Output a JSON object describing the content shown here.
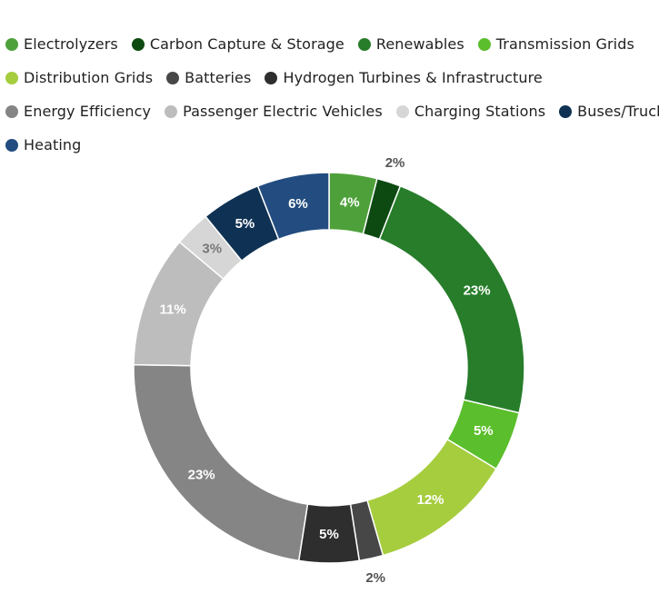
{
  "chart_data": {
    "type": "pie",
    "variant": "donut",
    "legend_position": "top",
    "series": [
      {
        "name": "Electrolyzers",
        "value": 4,
        "label": "4%",
        "color": "#4ea13a",
        "label_color": "#ffffff",
        "label_placement": "inside"
      },
      {
        "name": "Carbon Capture & Storage",
        "value": 2,
        "label": "2%",
        "color": "#0d4a12",
        "label_color": "#555555",
        "label_placement": "outside"
      },
      {
        "name": "Renewables",
        "value": 23,
        "label": "23%",
        "color": "#277d2a",
        "label_color": "#ffffff",
        "label_placement": "inside"
      },
      {
        "name": "Transmission Grids",
        "value": 5,
        "label": "5%",
        "color": "#5bbe2c",
        "label_color": "#ffffff",
        "label_placement": "inside"
      },
      {
        "name": "Distribution Grids",
        "value": 12,
        "label": "12%",
        "color": "#a6cd3e",
        "label_color": "#ffffff",
        "label_placement": "inside"
      },
      {
        "name": "Batteries",
        "value": 2,
        "label": "2%",
        "color": "#474747",
        "label_color": "#555555",
        "label_placement": "outside"
      },
      {
        "name": "Hydrogen Turbines & Infrastructure",
        "value": 5,
        "label": "5%",
        "color": "#2e2e2e",
        "label_color": "#ffffff",
        "label_placement": "inside"
      },
      {
        "name": "Energy Efficiency",
        "value": 23,
        "label": "23%",
        "color": "#858585",
        "label_color": "#ffffff",
        "label_placement": "inside"
      },
      {
        "name": "Passenger Electric Vehicles",
        "value": 11,
        "label": "11%",
        "color": "#bdbdbd",
        "label_color": "#ffffff",
        "label_placement": "inside"
      },
      {
        "name": "Charging Stations",
        "value": 3,
        "label": "3%",
        "color": "#d6d6d6",
        "label_color": "#777777",
        "label_placement": "inside"
      },
      {
        "name": "Buses/Trucks",
        "value": 5,
        "label": "5%",
        "color": "#0f3254",
        "label_color": "#ffffff",
        "label_placement": "inside"
      },
      {
        "name": "Heating",
        "value": 6,
        "label": "6%",
        "color": "#234d80",
        "label_color": "#ffffff",
        "label_placement": "inside"
      }
    ]
  }
}
